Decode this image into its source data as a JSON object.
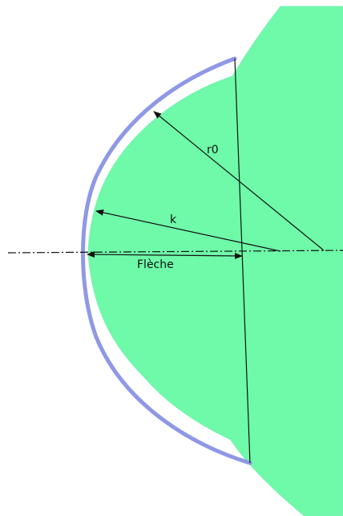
{
  "labels": {
    "r0": "r0",
    "k": "k",
    "fleche": "Flèche"
  },
  "colors": {
    "shape_fill": "#6efaa8",
    "lens_edge": "#8f98e6",
    "line": "#111111",
    "background": "#ffffff"
  },
  "legend": []
}
